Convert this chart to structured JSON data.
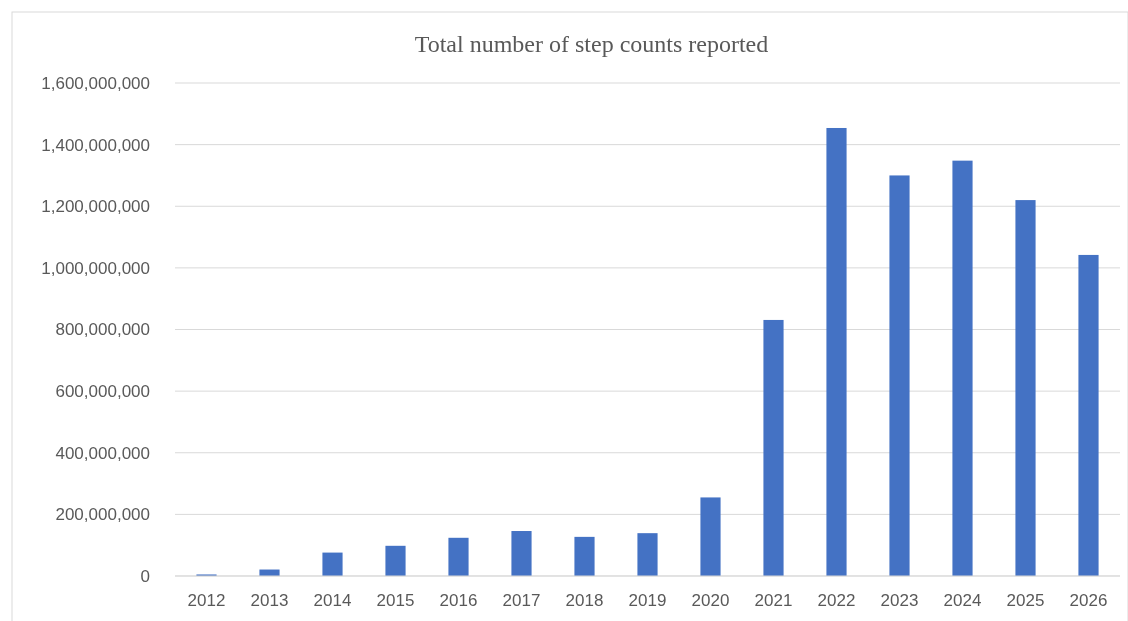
{
  "chart_data": {
    "type": "bar",
    "title": "Total number of step counts reported",
    "categories": [
      "2012",
      "2013",
      "2014",
      "2015",
      "2016",
      "2017",
      "2018",
      "2019",
      "2020",
      "2021",
      "2022",
      "2023",
      "2024",
      "2025",
      "2026"
    ],
    "values": [
      5000000,
      21000000,
      76000000,
      98000000,
      124000000,
      146000000,
      127000000,
      139000000,
      255000000,
      831000000,
      1454000000,
      1300000000,
      1348000000,
      1220000000,
      1042000000
    ],
    "color": "#4472c4",
    "ylim": [
      0,
      1600000000
    ],
    "yticks": [
      {
        "value": 0,
        "label": "0"
      },
      {
        "value": 200000000,
        "label": "200,000,000"
      },
      {
        "value": 400000000,
        "label": "400,000,000"
      },
      {
        "value": 600000000,
        "label": "600,000,000"
      },
      {
        "value": 800000000,
        "label": "800,000,000"
      },
      {
        "value": 1000000000,
        "label": "1,000,000,000"
      },
      {
        "value": 1200000000,
        "label": "1,200,000,000"
      },
      {
        "value": 1400000000,
        "label": "1,400,000,000"
      },
      {
        "value": 1600000000,
        "label": "1,600,000,000"
      }
    ],
    "grid": "y"
  }
}
